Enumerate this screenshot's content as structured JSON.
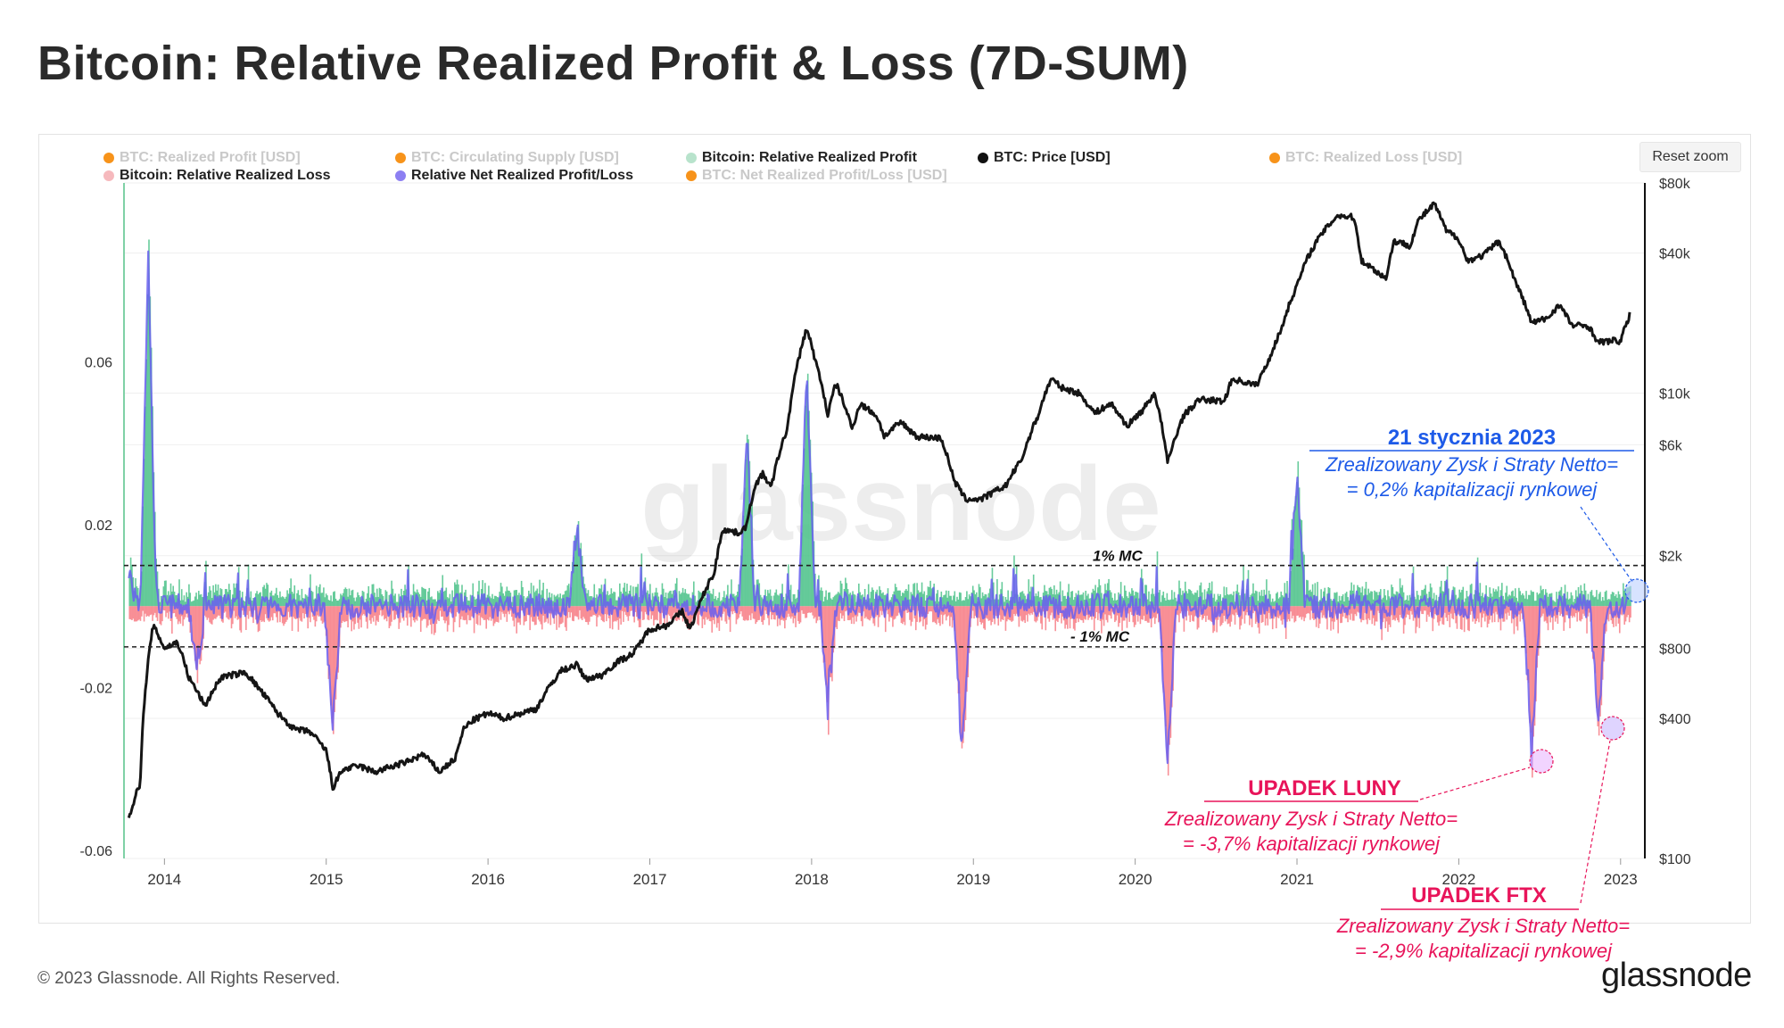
{
  "title": "Bitcoin: Relative Realized Profit & Loss (7D-SUM)",
  "reset_zoom": "Reset zoom",
  "footer": "© 2023 Glassnode. All Rights Reserved.",
  "logo": "glassnode",
  "watermark": "glassnode",
  "legend": [
    {
      "label": "BTC: Realized Profit [USD]",
      "color": "#f7931a",
      "active": false
    },
    {
      "label": "BTC: Circulating Supply [USD]",
      "color": "#f7931a",
      "active": false
    },
    {
      "label": "Bitcoin: Relative Realized Profit",
      "color": "#b8e3cc",
      "active": true
    },
    {
      "label": "BTC: Price [USD]",
      "color": "#111111",
      "active": true
    },
    {
      "label": "BTC: Realized Loss [USD]",
      "color": "#f7931a",
      "active": false
    },
    {
      "label": "Bitcoin: Relative Realized Loss",
      "color": "#f6b9bd",
      "active": true
    },
    {
      "label": "Relative Net Realized Profit/Loss",
      "color": "#8c7ff2",
      "active": true
    },
    {
      "label": "BTC: Net Realized Profit/Loss [USD]",
      "color": "#f7931a",
      "active": false
    }
  ],
  "colors": {
    "profit": "#4cc28a",
    "loss": "#f77e86",
    "net": "#6a5ff0",
    "price": "#151515",
    "annotation_blue": "#1d5ae8",
    "annotation_pink": "#e8145a"
  },
  "reference_lines": {
    "plus_label": "1% MC",
    "minus_label": "- 1% MC",
    "plus_value": 0.01,
    "minus_value": -0.01
  },
  "annotations": {
    "jan": {
      "title": "21 stycznia 2023",
      "line1": "Zrealizowany Zysk i Straty Netto=",
      "line2": "= 0,2% kapitalizacji rynkowej"
    },
    "luna": {
      "title": "UPADEK LUNY",
      "line1": "Zrealizowany Zysk i Straty Netto=",
      "line2": "= -3,7% kapitalizacji rynkowej"
    },
    "ftx": {
      "title": "UPADEK FTX",
      "line1": "Zrealizowany Zysk i Straty Netto=",
      "line2": "= -2,9% kapitalizacji rynkowej"
    }
  },
  "chart_data": {
    "type": "area",
    "title": "Bitcoin: Relative Realized Profit & Loss (7D-SUM)",
    "x_ticks": [
      "2014",
      "2015",
      "2016",
      "2017",
      "2018",
      "2019",
      "2020",
      "2021",
      "2022",
      "2023"
    ],
    "x_range": [
      2013.75,
      2023.15
    ],
    "left_axis": {
      "ticks": [
        "0.06",
        "0.02",
        "-0.02",
        "-0.06"
      ],
      "tick_values": [
        0.06,
        0.02,
        -0.02,
        -0.06
      ],
      "range": [
        -0.062,
        0.104
      ]
    },
    "right_axis": {
      "scale": "log",
      "ticks": [
        "$80k",
        "$40k",
        "$10k",
        "$6k",
        "$2k",
        "$800",
        "$400",
        "$100"
      ],
      "tick_values": [
        80000,
        40000,
        10000,
        6000,
        2000,
        800,
        400,
        100
      ],
      "range": [
        100,
        80000
      ]
    },
    "series": [
      {
        "name": "BTC: Price [USD]",
        "axis": "right",
        "points": [
          [
            2013.78,
            150
          ],
          [
            2013.85,
            210
          ],
          [
            2013.93,
            1000
          ],
          [
            2014.0,
            800
          ],
          [
            2014.08,
            850
          ],
          [
            2014.15,
            600
          ],
          [
            2014.25,
            450
          ],
          [
            2014.35,
            600
          ],
          [
            2014.45,
            620
          ],
          [
            2014.5,
            630
          ],
          [
            2014.6,
            520
          ],
          [
            2014.7,
            420
          ],
          [
            2014.8,
            360
          ],
          [
            2014.9,
            350
          ],
          [
            2015.0,
            290
          ],
          [
            2015.04,
            200
          ],
          [
            2015.1,
            240
          ],
          [
            2015.2,
            250
          ],
          [
            2015.3,
            235
          ],
          [
            2015.5,
            260
          ],
          [
            2015.6,
            280
          ],
          [
            2015.7,
            235
          ],
          [
            2015.8,
            270
          ],
          [
            2015.85,
            360
          ],
          [
            2015.9,
            390
          ],
          [
            2016.0,
            420
          ],
          [
            2016.1,
            400
          ],
          [
            2016.3,
            440
          ],
          [
            2016.45,
            640
          ],
          [
            2016.55,
            680
          ],
          [
            2016.6,
            590
          ],
          [
            2016.7,
            610
          ],
          [
            2016.8,
            700
          ],
          [
            2016.9,
            760
          ],
          [
            2017.0,
            970
          ],
          [
            2017.1,
            1000
          ],
          [
            2017.2,
            1150
          ],
          [
            2017.25,
            960
          ],
          [
            2017.3,
            1200
          ],
          [
            2017.4,
            1700
          ],
          [
            2017.45,
            2600
          ],
          [
            2017.55,
            2500
          ],
          [
            2017.6,
            2700
          ],
          [
            2017.65,
            4000
          ],
          [
            2017.7,
            4500
          ],
          [
            2017.75,
            3900
          ],
          [
            2017.8,
            5500
          ],
          [
            2017.85,
            7000
          ],
          [
            2017.92,
            14000
          ],
          [
            2017.97,
            19000
          ],
          [
            2018.02,
            14000
          ],
          [
            2018.1,
            8000
          ],
          [
            2018.15,
            11000
          ],
          [
            2018.25,
            7000
          ],
          [
            2018.3,
            9000
          ],
          [
            2018.4,
            8000
          ],
          [
            2018.45,
            6500
          ],
          [
            2018.55,
            7500
          ],
          [
            2018.65,
            6500
          ],
          [
            2018.8,
            6400
          ],
          [
            2018.88,
            4200
          ],
          [
            2018.95,
            3500
          ],
          [
            2019.05,
            3500
          ],
          [
            2019.2,
            4000
          ],
          [
            2019.3,
            5200
          ],
          [
            2019.4,
            8000
          ],
          [
            2019.48,
            11500
          ],
          [
            2019.55,
            10500
          ],
          [
            2019.65,
            10000
          ],
          [
            2019.75,
            8200
          ],
          [
            2019.85,
            9000
          ],
          [
            2019.95,
            7200
          ],
          [
            2020.05,
            8500
          ],
          [
            2020.12,
            10000
          ],
          [
            2020.2,
            5000
          ],
          [
            2020.3,
            8000
          ],
          [
            2020.4,
            9400
          ],
          [
            2020.55,
            9200
          ],
          [
            2020.6,
            11500
          ],
          [
            2020.75,
            10800
          ],
          [
            2020.82,
            13500
          ],
          [
            2020.9,
            18500
          ],
          [
            2021.0,
            29000
          ],
          [
            2021.08,
            40000
          ],
          [
            2021.15,
            48000
          ],
          [
            2021.25,
            58000
          ],
          [
            2021.35,
            57000
          ],
          [
            2021.4,
            37000
          ],
          [
            2021.5,
            33000
          ],
          [
            2021.55,
            31000
          ],
          [
            2021.6,
            45000
          ],
          [
            2021.7,
            43000
          ],
          [
            2021.75,
            55000
          ],
          [
            2021.85,
            65000
          ],
          [
            2021.92,
            50000
          ],
          [
            2022.0,
            46000
          ],
          [
            2022.05,
            37000
          ],
          [
            2022.15,
            39000
          ],
          [
            2022.25,
            45000
          ],
          [
            2022.35,
            30000
          ],
          [
            2022.45,
            20000
          ],
          [
            2022.55,
            21000
          ],
          [
            2022.62,
            24000
          ],
          [
            2022.7,
            19500
          ],
          [
            2022.8,
            19500
          ],
          [
            2022.86,
            16500
          ],
          [
            2022.95,
            16800
          ],
          [
            2023.0,
            16700
          ],
          [
            2023.05,
            21000
          ],
          [
            2023.06,
            22800
          ]
        ]
      },
      {
        "name": "Relative Net Realized Profit/Loss",
        "axis": "left",
        "points": [
          [
            2013.78,
            0.01
          ],
          [
            2013.9,
            0.085
          ],
          [
            2014.2,
            -0.015
          ],
          [
            2015.04,
            -0.03
          ],
          [
            2016.55,
            0.02
          ],
          [
            2017.6,
            0.04
          ],
          [
            2017.97,
            0.058
          ],
          [
            2018.1,
            -0.025
          ],
          [
            2018.93,
            -0.036
          ],
          [
            2020.2,
            -0.039
          ],
          [
            2021.0,
            0.032
          ],
          [
            2022.45,
            -0.037
          ],
          [
            2022.86,
            -0.029
          ],
          [
            2023.06,
            0.002
          ]
        ]
      }
    ]
  }
}
